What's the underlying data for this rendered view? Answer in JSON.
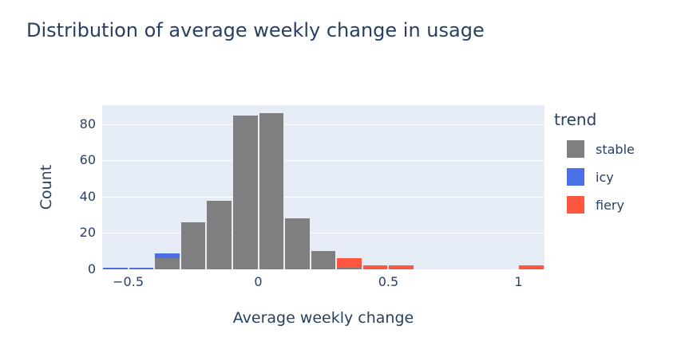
{
  "chart_data": {
    "type": "bar",
    "subtype": "stacked-histogram",
    "title": "Distribution of average weekly change in usage",
    "xlabel": "Average weekly change",
    "ylabel": "Count",
    "grid": true,
    "bin_width": 0.1,
    "xlim": [
      -0.6,
      1.1
    ],
    "ylim": [
      0,
      90.5
    ],
    "x_ticks": [
      {
        "value": -0.5,
        "label": "−0.5"
      },
      {
        "value": 0,
        "label": "0"
      },
      {
        "value": 0.5,
        "label": "0.5"
      },
      {
        "value": 1,
        "label": "1"
      }
    ],
    "y_ticks": [
      0,
      20,
      40,
      60,
      80
    ],
    "legend": {
      "title": "trend",
      "position": "right",
      "entries": [
        {
          "label": "stable",
          "color": "#7f7f7f"
        },
        {
          "label": "icy",
          "color": "#4b6fe6"
        },
        {
          "label": "fiery",
          "color": "#ff5640"
        }
      ]
    },
    "bars": [
      {
        "x0": -0.6,
        "x1": -0.5,
        "segments": [
          {
            "trend": "icy",
            "count": 1
          }
        ]
      },
      {
        "x0": -0.5,
        "x1": -0.4,
        "segments": [
          {
            "trend": "icy",
            "count": 1
          }
        ]
      },
      {
        "x0": -0.4,
        "x1": -0.3,
        "segments": [
          {
            "trend": "stable",
            "count": 6
          },
          {
            "trend": "icy",
            "count": 3
          }
        ]
      },
      {
        "x0": -0.3,
        "x1": -0.2,
        "segments": [
          {
            "trend": "stable",
            "count": 26
          }
        ]
      },
      {
        "x0": -0.2,
        "x1": -0.1,
        "segments": [
          {
            "trend": "stable",
            "count": 38
          }
        ]
      },
      {
        "x0": -0.1,
        "x1": 0.0,
        "segments": [
          {
            "trend": "stable",
            "count": 85
          }
        ]
      },
      {
        "x0": 0.0,
        "x1": 0.1,
        "segments": [
          {
            "trend": "stable",
            "count": 86
          }
        ]
      },
      {
        "x0": 0.1,
        "x1": 0.2,
        "segments": [
          {
            "trend": "stable",
            "count": 28
          }
        ]
      },
      {
        "x0": 0.2,
        "x1": 0.3,
        "segments": [
          {
            "trend": "stable",
            "count": 10
          }
        ]
      },
      {
        "x0": 0.3,
        "x1": 0.4,
        "segments": [
          {
            "trend": "stable",
            "count": 1
          },
          {
            "trend": "fiery",
            "count": 5
          }
        ]
      },
      {
        "x0": 0.4,
        "x1": 0.5,
        "segments": [
          {
            "trend": "fiery",
            "count": 2
          }
        ]
      },
      {
        "x0": 0.5,
        "x1": 0.6,
        "segments": [
          {
            "trend": "fiery",
            "count": 2
          }
        ]
      },
      {
        "x0": 1.0,
        "x1": 1.1,
        "segments": [
          {
            "trend": "fiery",
            "count": 2
          }
        ]
      }
    ],
    "colors": {
      "plot_bgcolor": "#e5ecf6",
      "paper_bgcolor": "#ffffff",
      "grid_color": "#ffffff",
      "font_color": "#2a3f5f"
    }
  }
}
